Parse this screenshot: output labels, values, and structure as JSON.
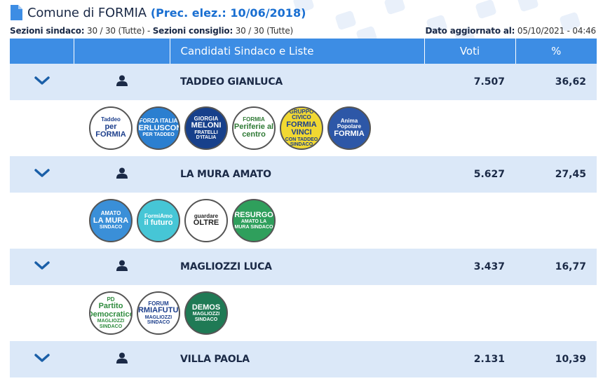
{
  "header": {
    "title": "Comune di FORMIA",
    "prev_election": "(Prec. elez.: 10/06/2018)"
  },
  "meta": {
    "sez_sindaco_label": "Sezioni sindaco:",
    "sez_sindaco_value": "30 / 30 (Tutte)",
    "separator": " - ",
    "sez_consiglio_label": "Sezioni consiglio:",
    "sez_consiglio_value": "30 / 30 (Tutte)",
    "updated_label": "Dato aggiornato al:",
    "updated_value": "05/10/2021 - 04:46"
  },
  "table": {
    "headers": {
      "candidates": "Candidati Sindaco e Liste",
      "votes": "Voti",
      "percent": "%"
    },
    "candidates": [
      {
        "name": "TADDEO GIANLUCA",
        "votes": "7.507",
        "percent": "36,62",
        "lists": [
          {
            "lines": [
              "Taddeo",
              "per FORMIA",
              ""
            ],
            "bg": "#ffffff",
            "fg": "#1d3f8c"
          },
          {
            "lines": [
              "FORZA ITALIA",
              "BERLUSCONI",
              "PER TADDEO"
            ],
            "bg": "#2b7fd0",
            "fg": "#ffffff"
          },
          {
            "lines": [
              "GIORGIA",
              "MELONI",
              "FRATELLI D'ITALIA"
            ],
            "bg": "#17408b",
            "fg": "#ffffff"
          },
          {
            "lines": [
              "FORMIA",
              "Periferie al centro",
              ""
            ],
            "bg": "#ffffff",
            "fg": "#2f7a35"
          },
          {
            "lines": [
              "GRUPPO CIVICO",
              "FORMIA VINCI",
              "CON TADDEO SINDACO"
            ],
            "bg": "#f1d832",
            "fg": "#1d3f8c"
          },
          {
            "lines": [
              "Anima Popolare",
              "FORMIA",
              ""
            ],
            "bg": "#2d57a7",
            "fg": "#ffffff"
          }
        ]
      },
      {
        "name": "LA MURA AMATO",
        "votes": "5.627",
        "percent": "27,45",
        "lists": [
          {
            "lines": [
              "AMATO",
              "LA MURA",
              "SINDACO"
            ],
            "bg": "#3a8fd8",
            "fg": "#ffffff"
          },
          {
            "lines": [
              "FormiAmo",
              "il futuro",
              ""
            ],
            "bg": "#46c6d6",
            "fg": "#ffffff"
          },
          {
            "lines": [
              "guardare",
              "OLTRE",
              ""
            ],
            "bg": "#ffffff",
            "fg": "#222222"
          },
          {
            "lines": [
              "",
              "RESURGO",
              "AMATO LA MURA SINDACO"
            ],
            "bg": "#2f9f5c",
            "fg": "#ffffff"
          }
        ]
      },
      {
        "name": "MAGLIOZZI LUCA",
        "votes": "3.437",
        "percent": "16,77",
        "lists": [
          {
            "lines": [
              "PD",
              "Partito Democratico",
              "MAGLIOZZI SINDACO"
            ],
            "bg": "#ffffff",
            "fg": "#2e8b3d"
          },
          {
            "lines": [
              "FORUM",
              "FORMIAFUTURA",
              "MAGLIOZZI SINDACO"
            ],
            "bg": "#ffffff",
            "fg": "#1d3f8c"
          },
          {
            "lines": [
              "",
              "DEMOS",
              "MAGLIOZZI SINDACO"
            ],
            "bg": "#1f7a55",
            "fg": "#ffffff"
          }
        ]
      },
      {
        "name": "VILLA PAOLA",
        "votes": "2.131",
        "percent": "10,39",
        "lists": []
      }
    ]
  },
  "icons": {
    "doc": "document-icon",
    "chevron": "chevron-down-icon",
    "person": "person-icon"
  },
  "colors": {
    "header_bg": "#3d8de4",
    "row_bg": "#dbe8f8",
    "accent": "#1a6fd1"
  }
}
